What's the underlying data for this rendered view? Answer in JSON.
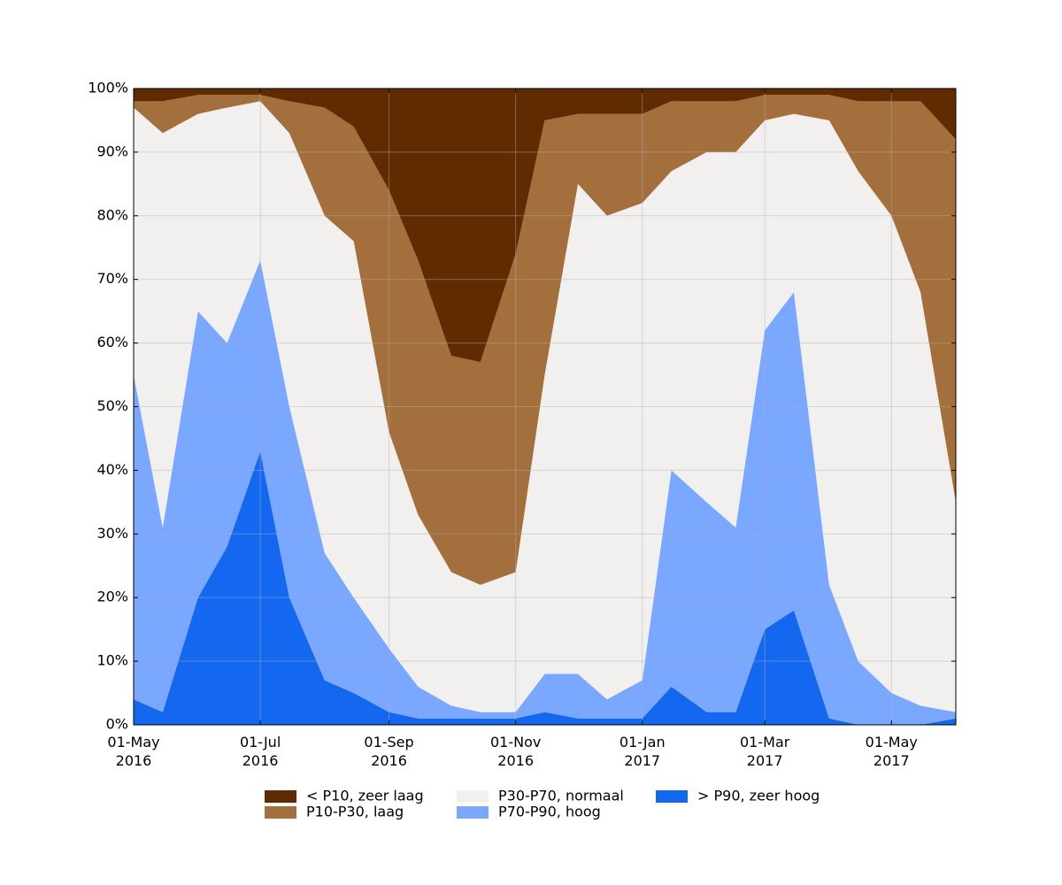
{
  "chart_data": {
    "type": "stacked_area",
    "x": [
      "2016-05-01",
      "2016-05-15",
      "2016-06-01",
      "2016-06-15",
      "2016-07-01",
      "2016-07-15",
      "2016-08-01",
      "2016-08-15",
      "2016-09-01",
      "2016-09-15",
      "2016-10-01",
      "2016-10-15",
      "2016-11-01",
      "2016-11-15",
      "2016-12-01",
      "2016-12-15",
      "2017-01-01",
      "2017-01-15",
      "2017-02-01",
      "2017-02-15",
      "2017-03-01",
      "2017-03-15",
      "2017-04-01",
      "2017-04-15",
      "2017-05-01",
      "2017-05-15",
      "2017-06-01"
    ],
    "series": [
      {
        "name": "< P10, zeer laag",
        "color": "#612b00",
        "values": [
          2,
          2,
          1,
          1,
          1,
          2,
          3,
          6,
          16,
          27,
          42,
          43,
          26,
          5,
          4,
          4,
          4,
          2,
          2,
          2,
          1,
          1,
          1,
          2,
          2,
          2,
          8
        ]
      },
      {
        "name": "P10-P30, laag",
        "color": "#a3703d",
        "values": [
          1,
          5,
          3,
          2,
          1,
          5,
          17,
          18,
          38,
          40,
          34,
          35,
          50,
          40,
          11,
          16,
          14,
          11,
          8,
          8,
          4,
          3,
          4,
          11,
          18,
          30,
          57
        ]
      },
      {
        "name": "P30-P70, normaal",
        "color": "#f2f0ef",
        "values": [
          42,
          62,
          31,
          37,
          25,
          43,
          53,
          56,
          34,
          27,
          21,
          20,
          22,
          47,
          77,
          76,
          75,
          47,
          55,
          59,
          33,
          28,
          73,
          77,
          75,
          65,
          33
        ]
      },
      {
        "name": "P70-P90, hoog",
        "color": "#7aa7ff",
        "values": [
          51,
          29,
          45,
          32,
          30,
          30,
          20,
          15,
          10,
          5,
          2,
          1,
          1,
          6,
          7,
          3,
          6,
          34,
          33,
          29,
          47,
          50,
          21,
          10,
          5,
          3,
          1
        ]
      },
      {
        "name": "> P90, zeer hoog",
        "color": "#1468f0",
        "values": [
          4,
          2,
          20,
          28,
          43,
          20,
          7,
          5,
          2,
          1,
          1,
          1,
          1,
          2,
          1,
          1,
          1,
          6,
          2,
          2,
          15,
          18,
          1,
          0,
          0,
          0,
          1
        ]
      }
    ],
    "xlim": [
      "2016-05-01",
      "2017-06-01"
    ],
    "xticks": [
      {
        "value": "2016-05-01",
        "label": "01-May\n2016"
      },
      {
        "value": "2016-07-01",
        "label": "01-Jul\n2016"
      },
      {
        "value": "2016-09-01",
        "label": "01-Sep\n2016"
      },
      {
        "value": "2016-11-01",
        "label": "01-Nov\n2016"
      },
      {
        "value": "2017-01-01",
        "label": "01-Jan\n2017"
      },
      {
        "value": "2017-03-01",
        "label": "01-Mar\n2017"
      },
      {
        "value": "2017-05-01",
        "label": "01-May\n2017"
      }
    ],
    "ylim": [
      0,
      100
    ],
    "yticks": [
      {
        "value": 0,
        "label": "0%"
      },
      {
        "value": 10,
        "label": "10%"
      },
      {
        "value": 20,
        "label": "20%"
      },
      {
        "value": 30,
        "label": "30%"
      },
      {
        "value": 40,
        "label": "40%"
      },
      {
        "value": 50,
        "label": "50%"
      },
      {
        "value": 60,
        "label": "60%"
      },
      {
        "value": 70,
        "label": "70%"
      },
      {
        "value": 80,
        "label": "80%"
      },
      {
        "value": 90,
        "label": "90%"
      },
      {
        "value": 100,
        "label": "100%"
      }
    ],
    "grid": true,
    "legend": "bottom"
  }
}
